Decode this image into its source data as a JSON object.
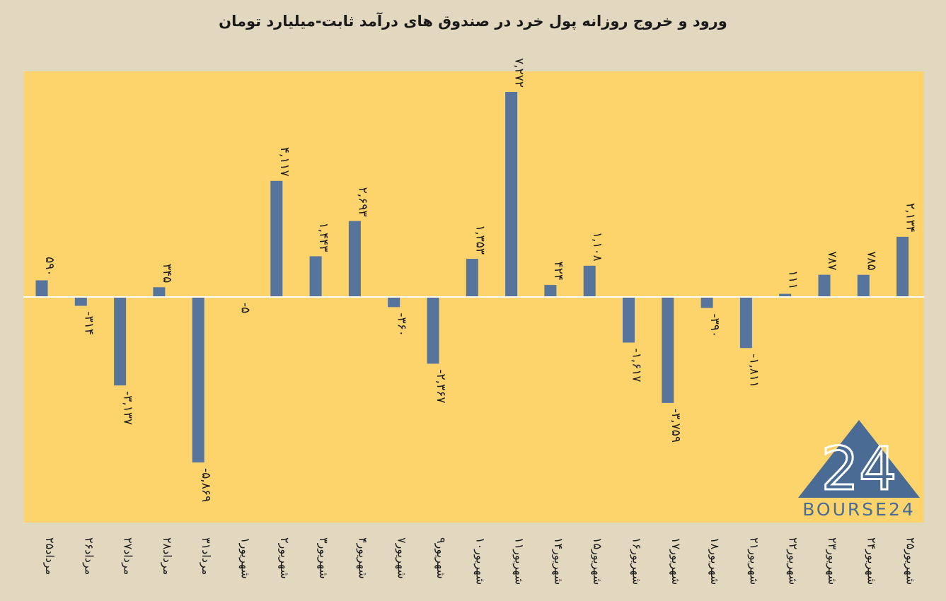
{
  "chart_data": {
    "type": "bar",
    "title": "ورود و خروج روزانه پول خرد در صندوق های درآمد ثابت-میلیارد تومان",
    "xlabel": "",
    "ylabel": "",
    "categories": [
      "۲۵مرداد",
      "۲۶مرداد",
      "۲۷مرداد",
      "۲۸مرداد",
      "۳۱مرداد",
      "۱شهریور",
      "۲شهریور",
      "۳شهریور",
      "۴شهریور",
      "۷شهریور",
      "۹شهریور",
      "۱۰شهریور",
      "۱۱شهریور",
      "۱۴شهریور",
      "۱۵شهریور",
      "۱۶شهریور",
      "۱۷شهریور",
      "۱۸شهریور",
      "۲۱شهریور",
      "۲۲شهریور",
      "۲۳شهریور",
      "۲۴شهریور",
      "۲۵شهریور"
    ],
    "values": [
      590,
      -314,
      -3137,
      345,
      -5869,
      -5,
      4117,
      1443,
      2693,
      -360,
      -2367,
      1353,
      7272,
      424,
      1108,
      -1617,
      -3759,
      -390,
      -1811,
      111,
      787,
      785,
      2134
    ],
    "data_labels": [
      "۵۹۰",
      "-۳۱۴",
      "-۳,۱۳۷",
      "۳۴۵",
      "-۵,۸۶۹",
      "-۵",
      "۴,۱۱۷",
      "۱,۴۴۳",
      "۲,۶۹۳",
      "-۳۶۰",
      "-۲,۳۶۷",
      "۱,۳۵۳",
      "۷,۲۷۲",
      "۴۲۴",
      "۱,۱۰۸",
      "-۱,۶۱۷",
      "-۳,۷۵۹",
      "-۳۹۰",
      "-۱,۸۱۱",
      "۱۱۱",
      "۷۸۷",
      "۷۸۵",
      "۲,۱۳۴"
    ],
    "ylim": [
      -8100,
      8000
    ],
    "grid": false,
    "legend": "none",
    "colors": {
      "bar": "#56749c",
      "plot_bg": "#fdd36c",
      "page_bg": "#e2d7bf",
      "zero_line": "#ffffff"
    }
  },
  "logo": {
    "number": "24",
    "text": "BOURSE24"
  }
}
